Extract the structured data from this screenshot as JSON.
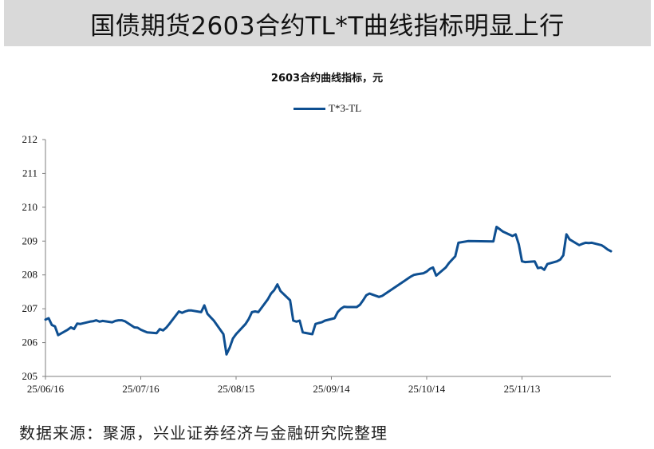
{
  "banner": {
    "title": "国债期货2603合约TL*T曲线指标明显上行"
  },
  "footer": {
    "source": "数据来源：聚源，兴业证券经济与金融研究院整理"
  },
  "chart_data": {
    "type": "line",
    "title": "2603合约曲线指标，元",
    "xlabel": "",
    "ylabel": "",
    "ylim": [
      205,
      212
    ],
    "yticks": [
      205,
      206,
      207,
      208,
      209,
      210,
      211,
      212
    ],
    "xlim": [
      "2025-06-16",
      "2025-12-11"
    ],
    "xticks": [
      {
        "date": "2025-06-16",
        "label": "25/06/16"
      },
      {
        "date": "2025-07-16",
        "label": "25/07/16"
      },
      {
        "date": "2025-08-15",
        "label": "25/08/15"
      },
      {
        "date": "2025-09-14",
        "label": "25/09/14"
      },
      {
        "date": "2025-10-14",
        "label": "25/10/14"
      },
      {
        "date": "2025-11-13",
        "label": "25/11/13"
      }
    ],
    "grid": false,
    "legend": "top-center",
    "colors": {
      "series": "#0e4f91",
      "axis": "#7f7f7f"
    },
    "series": [
      {
        "name": "T*3-TL",
        "points": [
          [
            "2025-06-16",
            206.68
          ],
          [
            "2025-06-17",
            206.72
          ],
          [
            "2025-06-18",
            206.52
          ],
          [
            "2025-06-19",
            206.48
          ],
          [
            "2025-06-20",
            206.22
          ],
          [
            "2025-06-23",
            206.38
          ],
          [
            "2025-06-24",
            206.45
          ],
          [
            "2025-06-25",
            206.4
          ],
          [
            "2025-06-26",
            206.56
          ],
          [
            "2025-06-27",
            206.55
          ],
          [
            "2025-06-30",
            206.62
          ],
          [
            "2025-07-01",
            206.63
          ],
          [
            "2025-07-02",
            206.66
          ],
          [
            "2025-07-03",
            206.62
          ],
          [
            "2025-07-04",
            206.64
          ],
          [
            "2025-07-07",
            206.6
          ],
          [
            "2025-07-08",
            206.64
          ],
          [
            "2025-07-09",
            206.66
          ],
          [
            "2025-07-10",
            206.66
          ],
          [
            "2025-07-11",
            206.63
          ],
          [
            "2025-07-14",
            206.45
          ],
          [
            "2025-07-15",
            206.44
          ],
          [
            "2025-07-16",
            206.38
          ],
          [
            "2025-07-17",
            206.34
          ],
          [
            "2025-07-18",
            206.3
          ],
          [
            "2025-07-21",
            206.28
          ],
          [
            "2025-07-22",
            206.4
          ],
          [
            "2025-07-23",
            206.36
          ],
          [
            "2025-07-24",
            206.44
          ],
          [
            "2025-07-25",
            206.55
          ],
          [
            "2025-07-28",
            206.92
          ],
          [
            "2025-07-29",
            206.88
          ],
          [
            "2025-07-30",
            206.92
          ],
          [
            "2025-07-31",
            206.95
          ],
          [
            "2025-08-01",
            206.95
          ],
          [
            "2025-08-04",
            206.9
          ],
          [
            "2025-08-05",
            207.1
          ],
          [
            "2025-08-06",
            206.85
          ],
          [
            "2025-08-07",
            206.75
          ],
          [
            "2025-08-08",
            206.65
          ],
          [
            "2025-08-11",
            206.25
          ],
          [
            "2025-08-12",
            205.65
          ],
          [
            "2025-08-13",
            205.85
          ],
          [
            "2025-08-14",
            206.12
          ],
          [
            "2025-08-15",
            206.25
          ],
          [
            "2025-08-18",
            206.55
          ],
          [
            "2025-08-19",
            206.7
          ],
          [
            "2025-08-20",
            206.9
          ],
          [
            "2025-08-21",
            206.92
          ],
          [
            "2025-08-22",
            206.9
          ],
          [
            "2025-08-25",
            207.28
          ],
          [
            "2025-08-26",
            207.45
          ],
          [
            "2025-08-27",
            207.55
          ],
          [
            "2025-08-28",
            207.72
          ],
          [
            "2025-08-29",
            207.52
          ],
          [
            "2025-09-01",
            207.25
          ],
          [
            "2025-09-02",
            206.65
          ],
          [
            "2025-09-03",
            206.62
          ],
          [
            "2025-09-04",
            206.65
          ],
          [
            "2025-09-05",
            206.3
          ],
          [
            "2025-09-08",
            206.25
          ],
          [
            "2025-09-09",
            206.55
          ],
          [
            "2025-09-10",
            206.58
          ],
          [
            "2025-09-11",
            206.6
          ],
          [
            "2025-09-12",
            206.65
          ],
          [
            "2025-09-15",
            206.72
          ],
          [
            "2025-09-16",
            206.9
          ],
          [
            "2025-09-17",
            207.0
          ],
          [
            "2025-09-18",
            207.06
          ],
          [
            "2025-09-19",
            207.05
          ],
          [
            "2025-09-22",
            207.05
          ],
          [
            "2025-09-23",
            207.12
          ],
          [
            "2025-09-24",
            207.25
          ],
          [
            "2025-09-25",
            207.4
          ],
          [
            "2025-09-26",
            207.45
          ],
          [
            "2025-09-29",
            207.35
          ],
          [
            "2025-09-30",
            207.38
          ],
          [
            "2025-10-09",
            207.95
          ],
          [
            "2025-10-10",
            208.0
          ],
          [
            "2025-10-11",
            208.02
          ],
          [
            "2025-10-13",
            208.05
          ],
          [
            "2025-10-14",
            208.1
          ],
          [
            "2025-10-15",
            208.18
          ],
          [
            "2025-10-16",
            208.22
          ],
          [
            "2025-10-17",
            207.98
          ],
          [
            "2025-10-20",
            208.22
          ],
          [
            "2025-10-21",
            208.35
          ],
          [
            "2025-10-22",
            208.45
          ],
          [
            "2025-10-23",
            208.55
          ],
          [
            "2025-10-24",
            208.95
          ],
          [
            "2025-10-27",
            209.0
          ],
          [
            "2025-11-04",
            208.99
          ],
          [
            "2025-11-05",
            209.42
          ],
          [
            "2025-11-06",
            209.35
          ],
          [
            "2025-11-07",
            209.28
          ],
          [
            "2025-11-10",
            209.15
          ],
          [
            "2025-11-11",
            209.2
          ],
          [
            "2025-11-12",
            208.9
          ],
          [
            "2025-11-13",
            208.4
          ],
          [
            "2025-11-14",
            208.38
          ],
          [
            "2025-11-17",
            208.4
          ],
          [
            "2025-11-18",
            208.2
          ],
          [
            "2025-11-19",
            208.22
          ],
          [
            "2025-11-20",
            208.15
          ],
          [
            "2025-11-21",
            208.32
          ],
          [
            "2025-11-24",
            208.4
          ],
          [
            "2025-11-25",
            208.45
          ],
          [
            "2025-11-26",
            208.58
          ],
          [
            "2025-11-27",
            209.2
          ],
          [
            "2025-11-28",
            209.05
          ],
          [
            "2025-12-01",
            208.88
          ],
          [
            "2025-12-02",
            208.92
          ],
          [
            "2025-12-03",
            208.95
          ],
          [
            "2025-12-04",
            208.94
          ],
          [
            "2025-12-05",
            208.95
          ],
          [
            "2025-12-08",
            208.88
          ],
          [
            "2025-12-09",
            208.82
          ],
          [
            "2025-12-10",
            208.75
          ],
          [
            "2025-12-11",
            208.7
          ]
        ]
      }
    ]
  }
}
